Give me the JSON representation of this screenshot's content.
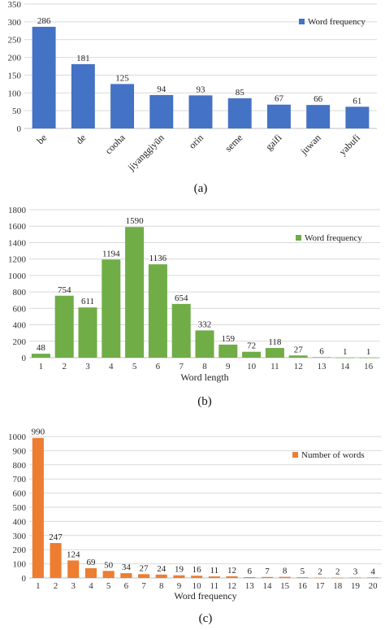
{
  "chart_data": [
    {
      "type": "bar",
      "caption": "(a)",
      "categories": [
        "be",
        "de",
        "cooha",
        "jiyanggiyūn",
        "orin",
        "seme",
        "gaifi",
        "juwan",
        "yabufi"
      ],
      "series": [
        {
          "name": "Word frequency",
          "values": [
            286,
            181,
            125,
            94,
            93,
            85,
            67,
            66,
            61
          ]
        }
      ],
      "color": "#4472C4",
      "ylim": [
        0,
        350
      ],
      "yticks": [
        0,
        50,
        100,
        150,
        200,
        250,
        300,
        350
      ],
      "xlabel": "",
      "ylabel": "",
      "grid": true,
      "legend": "top-right"
    },
    {
      "type": "bar",
      "caption": "(b)",
      "categories": [
        "1",
        "2",
        "3",
        "4",
        "5",
        "6",
        "7",
        "8",
        "9",
        "10",
        "11",
        "12",
        "13",
        "14",
        "16"
      ],
      "series": [
        {
          "name": "Word frequency",
          "values": [
            48,
            754,
            611,
            1194,
            1590,
            1136,
            654,
            332,
            159,
            72,
            118,
            27,
            6,
            1,
            1
          ]
        }
      ],
      "color": "#70AD47",
      "ylim": [
        0,
        1800
      ],
      "yticks": [
        0,
        200,
        400,
        600,
        800,
        1000,
        1200,
        1400,
        1600,
        1800
      ],
      "xlabel": "Word length",
      "ylabel": "",
      "grid": true,
      "legend": "top-right"
    },
    {
      "type": "bar",
      "caption": "(c)",
      "categories": [
        "1",
        "2",
        "3",
        "4",
        "5",
        "6",
        "7",
        "8",
        "9",
        "10",
        "11",
        "12",
        "13",
        "14",
        "15",
        "16",
        "17",
        "18",
        "19",
        "20"
      ],
      "series": [
        {
          "name": "Number of words",
          "values": [
            990,
            247,
            124,
            69,
            50,
            34,
            27,
            24,
            19,
            16,
            11,
            12,
            6,
            7,
            8,
            5,
            2,
            2,
            3,
            4
          ]
        }
      ],
      "color": "#ED7D31",
      "ylim": [
        0,
        1000
      ],
      "yticks": [
        0,
        100,
        200,
        300,
        400,
        500,
        600,
        700,
        800,
        900,
        1000
      ],
      "xlabel": "Word frequency",
      "ylabel": "",
      "grid": true,
      "legend": "top-right"
    }
  ]
}
